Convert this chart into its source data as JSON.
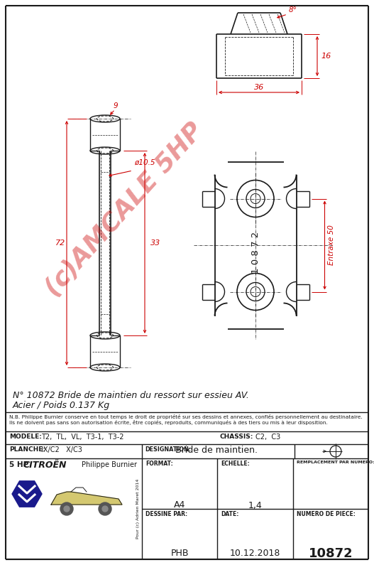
{
  "bg_color": "#ffffff",
  "line_color": "#1a1a1a",
  "dim_color": "#cc0000",
  "watermark_text": "(c)AMCALE 5HP",
  "watermark_color": "#cc0000",
  "desc_text1": "N° 10872 Bride de maintien du ressort sur essieu AV.",
  "desc_text2": "Acier / Poids 0.137 Kg",
  "nb_text": "N.B. Philippe Burnier conserve en tout temps le droit de propriété sur ses dessins et annexes, confiés personnellement au destinataire.\nIls ne doivent pas sans son autorisation écrite, être copiés, reproduits, communiqués à des tiers ou mis à leur disposition.",
  "modele_label": "MODELE:",
  "modele_value": "T2,  TL,  VL,  T3-1,  T3-2",
  "chassis_label": "CHASSIS:",
  "chassis_value": "C2,  C3",
  "planche_label": "PLANCHE:",
  "planche_value": "IX/C2   X/C3",
  "designation_label": "DESIGNATION:",
  "designation_value": "Bride de maintien.",
  "format_label": "FORMAT:",
  "format_value": "A4",
  "echelle_label": "ECHELLE:",
  "echelle_value": "1,4",
  "remplacement_label": "REMPLACEMENT PAR NUMERO:",
  "remplacement_value": "",
  "dessine_label": "DESSINE PAR:",
  "dessine_value": "PHB",
  "date_label": "DATE:",
  "date_value": "10.12.2018",
  "numero_label": "NUMERO DE PIECE:",
  "numero_value": "10872",
  "citroen_label": "CITROËN",
  "philippe_label": "Philippe Burnier",
  "dim_36": "36",
  "dim_16": "16",
  "dim_8deg": "8°",
  "dim_phi105": "ø10.5",
  "dim_33": "33",
  "dim_72": "72",
  "dim_9": "9",
  "dim_entraxe": "Entraxe 50",
  "part_number": "10872"
}
